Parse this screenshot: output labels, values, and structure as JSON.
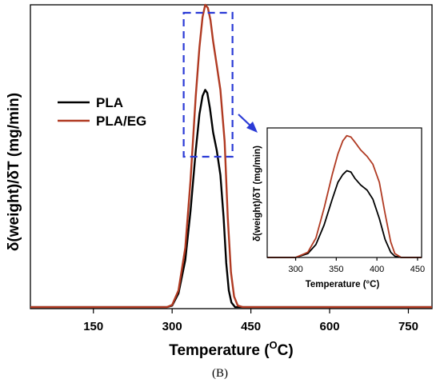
{
  "chart_data": [
    {
      "id": "main",
      "type": "line",
      "xlabel": "Temperature",
      "xlabel_unit_sup": "O",
      "xlabel_unit_tail": "C)",
      "xlabel_open": "(",
      "ylabel": "δ(weight)/δT (mg/min)",
      "xlim": [
        30,
        795
      ],
      "ylim": [
        0,
        1.0
      ],
      "x_ticks": [
        150,
        300,
        450,
        600,
        750
      ],
      "y_ticks_labeled": false,
      "legend_position": "left",
      "highlight_box_x": [
        322,
        415
      ],
      "series": [
        {
          "name": "PLA",
          "color": "#000000",
          "x": [
            30,
            290,
            300,
            312,
            325,
            335,
            345,
            352,
            358,
            363,
            367,
            372,
            378,
            385,
            392,
            398,
            403,
            408,
            413,
            420,
            430,
            795
          ],
          "y": [
            0.005,
            0.005,
            0.01,
            0.05,
            0.16,
            0.32,
            0.52,
            0.64,
            0.7,
            0.72,
            0.71,
            0.66,
            0.58,
            0.52,
            0.44,
            0.3,
            0.15,
            0.06,
            0.02,
            0.005,
            0.005,
            0.005
          ]
        },
        {
          "name": "PLA/EG",
          "color": "#b03a22",
          "x": [
            30,
            290,
            300,
            312,
            325,
            335,
            345,
            352,
            358,
            363,
            368,
            373,
            378,
            385,
            392,
            400,
            406,
            412,
            418,
            425,
            435,
            795
          ],
          "y": [
            0.005,
            0.005,
            0.012,
            0.06,
            0.2,
            0.42,
            0.7,
            0.86,
            0.96,
            1.0,
            0.99,
            0.95,
            0.88,
            0.8,
            0.72,
            0.55,
            0.3,
            0.12,
            0.04,
            0.01,
            0.005,
            0.005
          ]
        }
      ]
    },
    {
      "id": "inset",
      "type": "line",
      "xlabel": "Temperature (°C)",
      "ylabel": "δ(weight)/δT (mg/min)",
      "xlim": [
        265,
        455
      ],
      "ylim": [
        0,
        1.0
      ],
      "x_ticks": [
        300,
        350,
        400,
        450
      ],
      "series": [
        {
          "name": "PLA",
          "color": "#000000",
          "x": [
            265,
            300,
            315,
            325,
            335,
            345,
            352,
            358,
            363,
            368,
            373,
            380,
            388,
            395,
            403,
            410,
            417,
            422,
            430,
            455
          ],
          "y": [
            0.0,
            0.0,
            0.03,
            0.1,
            0.25,
            0.45,
            0.58,
            0.64,
            0.67,
            0.66,
            0.61,
            0.56,
            0.52,
            0.45,
            0.3,
            0.14,
            0.04,
            0.01,
            0.0,
            0.0
          ]
        },
        {
          "name": "PLA/EG",
          "color": "#b03a22",
          "x": [
            265,
            300,
            315,
            325,
            335,
            345,
            352,
            358,
            363,
            368,
            373,
            380,
            388,
            395,
            403,
            410,
            417,
            422,
            430,
            455
          ],
          "y": [
            0.0,
            0.0,
            0.04,
            0.15,
            0.38,
            0.64,
            0.8,
            0.9,
            0.94,
            0.93,
            0.89,
            0.83,
            0.78,
            0.72,
            0.58,
            0.34,
            0.12,
            0.03,
            0.0,
            0.0
          ]
        }
      ]
    }
  ],
  "panel_label": "(B)"
}
